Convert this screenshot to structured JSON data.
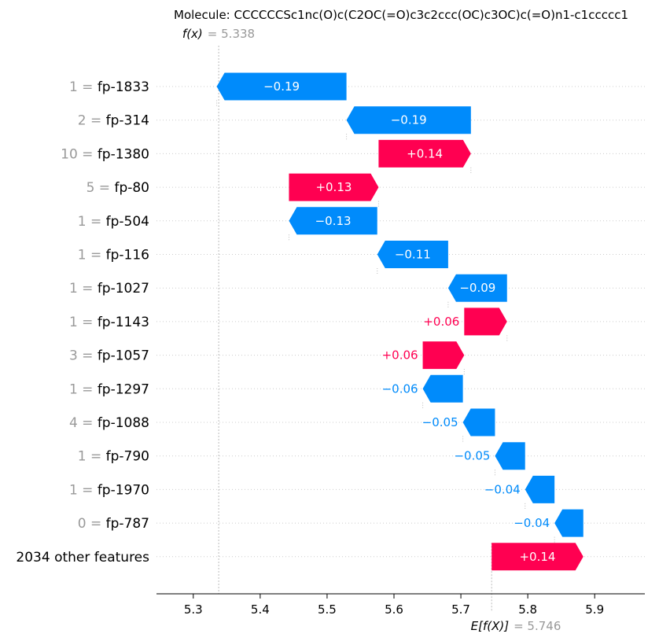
{
  "chart_data": {
    "type": "waterfall",
    "title": "Molecule: CCCCCCSc1nc(O)c(C2OC(=O)c3c2ccc(OC)c3OC)c(=O)n1-c1ccccc1",
    "fx_label": "f(x)",
    "fx_value": "= 5.338",
    "fx": 5.338,
    "expected_label": "E[f(X)]",
    "expected_value": "= 5.746",
    "expected": 5.746,
    "xlim": [
      5.245,
      5.975
    ],
    "xticks": [
      5.3,
      5.4,
      5.5,
      5.6,
      5.7,
      5.8,
      5.9
    ],
    "xtick_labels": [
      "5.3",
      "5.4",
      "5.5",
      "5.6",
      "5.7",
      "5.8",
      "5.9"
    ],
    "colors": {
      "positive": "#ff0051",
      "negative": "#008bfb",
      "text_gray": "#999999"
    },
    "features": [
      {
        "value": "1 =",
        "name": "fp-1833",
        "shap": -0.194,
        "label": "−0.19"
      },
      {
        "value": "2 =",
        "name": "fp-314",
        "shap": -0.186,
        "label": "−0.19"
      },
      {
        "value": "10 =",
        "name": "fp-1380",
        "shap": 0.138,
        "label": "+0.14"
      },
      {
        "value": "5 =",
        "name": "fp-80",
        "shap": 0.134,
        "label": "+0.13"
      },
      {
        "value": "1 =",
        "name": "fp-504",
        "shap": -0.132,
        "label": "−0.13"
      },
      {
        "value": "1 =",
        "name": "fp-116",
        "shap": -0.106,
        "label": "−0.11"
      },
      {
        "value": "1 =",
        "name": "fp-1027",
        "shap": -0.088,
        "label": "−0.09"
      },
      {
        "value": "1 =",
        "name": "fp-1143",
        "shap": 0.064,
        "label": "+0.06"
      },
      {
        "value": "3 =",
        "name": "fp-1057",
        "shap": 0.062,
        "label": "+0.06"
      },
      {
        "value": "1 =",
        "name": "fp-1297",
        "shap": -0.06,
        "label": "−0.06"
      },
      {
        "value": "4 =",
        "name": "fp-1088",
        "shap": -0.048,
        "label": "−0.05"
      },
      {
        "value": "1 =",
        "name": "fp-790",
        "shap": -0.045,
        "label": "−0.05"
      },
      {
        "value": "1 =",
        "name": "fp-1970",
        "shap": -0.044,
        "label": "−0.04"
      },
      {
        "value": "0 =",
        "name": "fp-787",
        "shap": -0.043,
        "label": "−0.04"
      },
      {
        "value": "",
        "name": "2034 other features",
        "shap": 0.137,
        "label": "+0.14"
      }
    ]
  }
}
